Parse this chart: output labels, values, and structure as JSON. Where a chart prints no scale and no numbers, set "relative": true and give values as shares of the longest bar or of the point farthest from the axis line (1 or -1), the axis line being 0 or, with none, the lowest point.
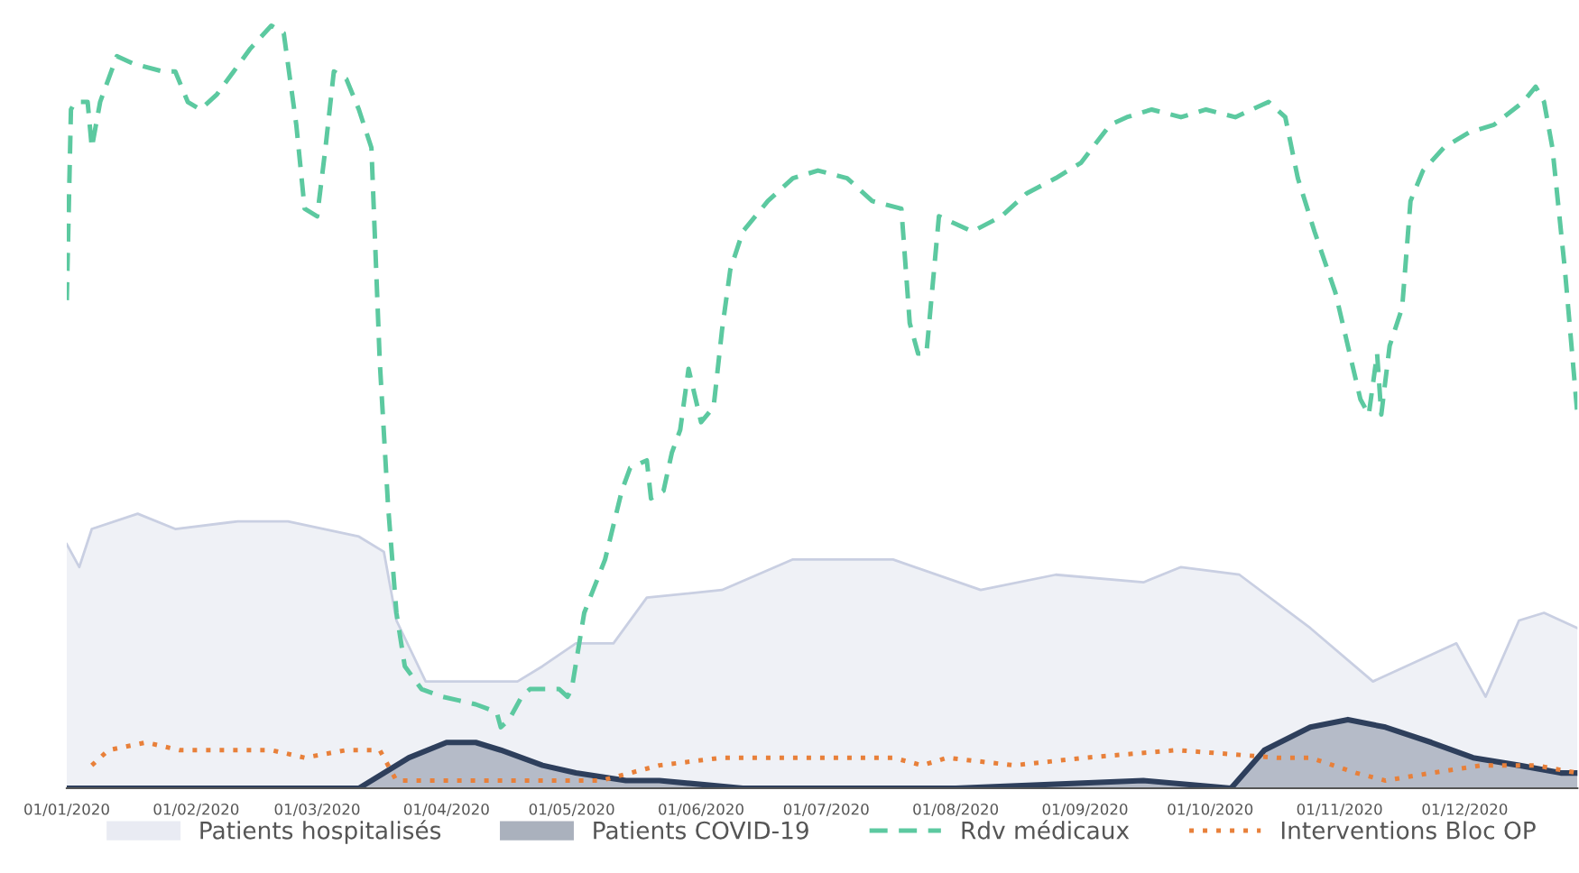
{
  "chart_data": {
    "type": "line",
    "relative": true,
    "legend": "bottom",
    "xlim": [
      "2020-01-01",
      "2020-12-28"
    ],
    "xticks": [
      {
        "value": "2020-01-01",
        "label": "01/01/2020"
      },
      {
        "value": "2020-02-01",
        "label": "01/02/2020"
      },
      {
        "value": "2020-03-01",
        "label": "01/03/2020"
      },
      {
        "value": "2020-04-01",
        "label": "01/04/2020"
      },
      {
        "value": "2020-05-01",
        "label": "01/05/2020"
      },
      {
        "value": "2020-06-01",
        "label": "01/06/2020"
      },
      {
        "value": "2020-07-01",
        "label": "01/07/2020"
      },
      {
        "value": "2020-08-01",
        "label": "01/08/2020"
      },
      {
        "value": "2020-09-01",
        "label": "01/09/2020"
      },
      {
        "value": "2020-10-01",
        "label": "01/10/2020"
      },
      {
        "value": "2020-11-01",
        "label": "01/11/2020"
      },
      {
        "value": "2020-12-01",
        "label": "01/12/2020"
      }
    ],
    "series": [
      {
        "name": "Patients hospitalisés",
        "type": "area",
        "color": "#c9cfe2",
        "x": [
          "2020-01-01",
          "2020-01-04",
          "2020-01-07",
          "2020-01-18",
          "2020-01-27",
          "2020-02-11",
          "2020-02-23",
          "2020-03-11",
          "2020-03-17",
          "2020-03-20",
          "2020-03-27",
          "2020-04-18",
          "2020-04-24",
          "2020-05-02",
          "2020-05-11",
          "2020-05-19",
          "2020-06-06",
          "2020-06-23",
          "2020-07-17",
          "2020-08-07",
          "2020-08-25",
          "2020-09-15",
          "2020-09-24",
          "2020-10-08",
          "2020-10-25",
          "2020-11-09",
          "2020-11-29",
          "2020-12-06",
          "2020-12-14",
          "2020-12-20",
          "2020-12-28"
        ],
        "values": [
          0.32,
          0.29,
          0.34,
          0.36,
          0.34,
          0.35,
          0.35,
          0.33,
          0.31,
          0.22,
          0.14,
          0.14,
          0.16,
          0.19,
          0.19,
          0.25,
          0.26,
          0.3,
          0.3,
          0.26,
          0.28,
          0.27,
          0.29,
          0.28,
          0.21,
          0.14,
          0.19,
          0.12,
          0.22,
          0.23,
          0.21
        ]
      },
      {
        "name": "Patients COVID-19",
        "type": "area",
        "color": "#2e3f5c",
        "x": [
          "2020-01-01",
          "2020-03-11",
          "2020-03-17",
          "2020-03-23",
          "2020-04-01",
          "2020-04-08",
          "2020-04-14",
          "2020-04-24",
          "2020-05-02",
          "2020-05-14",
          "2020-05-22",
          "2020-06-11",
          "2020-06-23",
          "2020-08-01",
          "2020-09-15",
          "2020-10-06",
          "2020-10-14",
          "2020-10-25",
          "2020-11-03",
          "2020-11-12",
          "2020-11-23",
          "2020-12-03",
          "2020-12-14",
          "2020-12-24",
          "2020-12-28"
        ],
        "values": [
          0,
          0,
          0.02,
          0.04,
          0.06,
          0.06,
          0.05,
          0.03,
          0.02,
          0.01,
          0.01,
          0,
          0,
          0,
          0.01,
          0,
          0.05,
          0.08,
          0.09,
          0.08,
          0.06,
          0.04,
          0.03,
          0.02,
          0.02
        ]
      },
      {
        "name": "Rdv médicaux",
        "line_style": "dashed",
        "color": "#5cc9a0",
        "x": [
          "2020-01-01",
          "2020-01-02",
          "2020-01-03",
          "2020-01-06",
          "2020-01-07",
          "2020-01-09",
          "2020-01-11",
          "2020-01-13",
          "2020-01-17",
          "2020-01-24",
          "2020-01-27",
          "2020-01-30",
          "2020-02-02",
          "2020-02-06",
          "2020-02-10",
          "2020-02-14",
          "2020-02-19",
          "2020-02-22",
          "2020-02-25",
          "2020-02-27",
          "2020-03-01",
          "2020-03-03",
          "2020-03-05",
          "2020-03-08",
          "2020-03-11",
          "2020-03-14",
          "2020-03-16",
          "2020-03-18",
          "2020-03-20",
          "2020-03-22",
          "2020-03-26",
          "2020-03-31",
          "2020-04-08",
          "2020-04-13",
          "2020-04-14",
          "2020-04-16",
          "2020-04-19",
          "2020-04-21",
          "2020-04-28",
          "2020-04-30",
          "2020-05-01",
          "2020-05-04",
          "2020-05-09",
          "2020-05-13",
          "2020-05-15",
          "2020-05-19",
          "2020-05-20",
          "2020-05-23",
          "2020-05-25",
          "2020-05-27",
          "2020-05-29",
          "2020-06-01",
          "2020-06-04",
          "2020-06-06",
          "2020-06-08",
          "2020-06-11",
          "2020-06-17",
          "2020-06-23",
          "2020-06-29",
          "2020-07-06",
          "2020-07-12",
          "2020-07-19",
          "2020-07-21",
          "2020-07-23",
          "2020-07-25",
          "2020-07-28",
          "2020-08-01",
          "2020-08-05",
          "2020-08-12",
          "2020-08-18",
          "2020-08-25",
          "2020-08-31",
          "2020-09-07",
          "2020-09-11",
          "2020-09-17",
          "2020-09-24",
          "2020-09-30",
          "2020-10-07",
          "2020-10-11",
          "2020-10-15",
          "2020-10-19",
          "2020-10-22",
          "2020-10-26",
          "2020-10-31",
          "2020-11-03",
          "2020-11-06",
          "2020-11-08",
          "2020-11-10",
          "2020-11-11",
          "2020-11-13",
          "2020-11-16",
          "2020-11-18",
          "2020-11-21",
          "2020-11-26",
          "2020-12-02",
          "2020-12-08",
          "2020-12-15",
          "2020-12-18",
          "2020-12-20",
          "2020-12-22",
          "2020-12-25",
          "2020-12-28"
        ],
        "values": [
          0.64,
          0.89,
          0.9,
          0.9,
          0.84,
          0.9,
          0.93,
          0.96,
          0.95,
          0.94,
          0.94,
          0.9,
          0.89,
          0.91,
          0.94,
          0.97,
          1,
          0.99,
          0.87,
          0.76,
          0.75,
          0.84,
          0.94,
          0.93,
          0.89,
          0.84,
          0.56,
          0.37,
          0.23,
          0.16,
          0.13,
          0.12,
          0.11,
          0.1,
          0.08,
          0.09,
          0.12,
          0.13,
          0.13,
          0.12,
          0.13,
          0.23,
          0.3,
          0.39,
          0.42,
          0.43,
          0.38,
          0.39,
          0.44,
          0.47,
          0.55,
          0.48,
          0.5,
          0.6,
          0.68,
          0.73,
          0.77,
          0.8,
          0.81,
          0.8,
          0.77,
          0.76,
          0.61,
          0.57,
          0.57,
          0.75,
          0.74,
          0.73,
          0.75,
          0.78,
          0.8,
          0.82,
          0.87,
          0.88,
          0.89,
          0.88,
          0.89,
          0.88,
          0.89,
          0.9,
          0.88,
          0.8,
          0.73,
          0.65,
          0.58,
          0.51,
          0.49,
          0.57,
          0.49,
          0.58,
          0.63,
          0.77,
          0.81,
          0.84,
          0.86,
          0.87,
          0.9,
          0.92,
          0.9,
          0.84,
          0.68,
          0.49
        ]
      },
      {
        "name": "Interventions Bloc OP",
        "line_style": "dotted",
        "color": "#e8803a",
        "x": [
          "2020-01-07",
          "2020-01-11",
          "2020-01-20",
          "2020-01-28",
          "2020-02-19",
          "2020-02-27",
          "2020-03-08",
          "2020-03-16",
          "2020-03-20",
          "2020-03-26",
          "2020-04-24",
          "2020-05-08",
          "2020-05-22",
          "2020-06-06",
          "2020-06-14",
          "2020-06-21",
          "2020-07-17",
          "2020-07-24",
          "2020-07-30",
          "2020-08-15",
          "2020-09-01",
          "2020-09-23",
          "2020-10-17",
          "2020-10-25",
          "2020-11-05",
          "2020-11-12",
          "2020-11-23",
          "2020-12-05",
          "2020-12-18",
          "2020-12-28"
        ],
        "values": [
          0.03,
          0.05,
          0.06,
          0.05,
          0.05,
          0.04,
          0.05,
          0.05,
          0.01,
          0.01,
          0.01,
          0.01,
          0.03,
          0.04,
          0.04,
          0.04,
          0.04,
          0.03,
          0.04,
          0.03,
          0.04,
          0.05,
          0.04,
          0.04,
          0.02,
          0.01,
          0.02,
          0.03,
          0.03,
          0.02
        ]
      }
    ]
  }
}
